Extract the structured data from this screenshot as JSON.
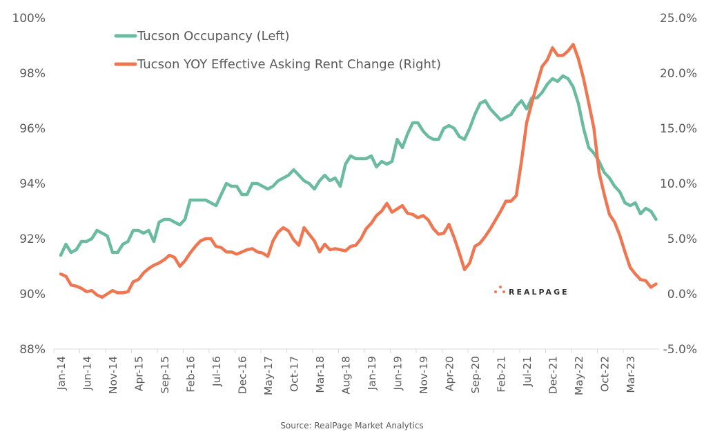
{
  "chart_data": {
    "type": "line",
    "title": "",
    "xlabel": "",
    "ylabel_left": "",
    "ylabel_right": "",
    "legend_position": "top-left",
    "grid": false,
    "x_tick_labels": [
      "Jan-14",
      "Jun-14",
      "Nov-14",
      "Apr-15",
      "Sep-15",
      "Feb-16",
      "Jul-16",
      "Dec-16",
      "May-17",
      "Oct-17",
      "Mar-18",
      "Aug-18",
      "Jan-19",
      "Jun-19",
      "Nov-19",
      "Apr-20",
      "Sep-20",
      "Feb-21",
      "Jul-21",
      "Dec-21",
      "May-22",
      "Oct-22",
      "Mar-23"
    ],
    "x_start": "Jan-14",
    "x_end": "Jul-23",
    "left_axis": {
      "ylim": [
        88,
        100
      ],
      "ticks": [
        88,
        90,
        92,
        94,
        96,
        98,
        100
      ],
      "tick_labels": [
        "88%",
        "90%",
        "92%",
        "94%",
        "96%",
        "98%",
        "100%"
      ]
    },
    "right_axis": {
      "ylim": [
        -5,
        25
      ],
      "ticks": [
        -5,
        0,
        5,
        10,
        15,
        20,
        25
      ],
      "tick_labels": [
        "-5.0%",
        "0.0%",
        "5.0%",
        "10.0%",
        "15.0%",
        "20.0%",
        "25.0%"
      ]
    },
    "series": [
      {
        "name": "Tucson Occupancy (Left)",
        "axis": "left",
        "color": "#6BBBA1",
        "values": [
          91.4,
          91.8,
          91.5,
          91.6,
          91.9,
          91.9,
          92.0,
          92.3,
          92.2,
          92.1,
          91.5,
          91.5,
          91.8,
          91.9,
          92.3,
          92.3,
          92.2,
          92.3,
          91.9,
          92.6,
          92.7,
          92.7,
          92.6,
          92.5,
          92.7,
          93.4,
          93.4,
          93.4,
          93.4,
          93.3,
          93.2,
          93.6,
          94.0,
          93.9,
          93.9,
          93.6,
          93.6,
          94.0,
          94.0,
          93.9,
          93.8,
          93.9,
          94.1,
          94.2,
          94.3,
          94.5,
          94.3,
          94.1,
          94.0,
          93.8,
          94.1,
          94.3,
          94.1,
          94.2,
          93.9,
          94.7,
          95.0,
          94.9,
          94.9,
          94.9,
          95.0,
          94.6,
          94.8,
          94.7,
          94.8,
          95.6,
          95.3,
          95.8,
          96.2,
          96.2,
          95.9,
          95.7,
          95.6,
          95.6,
          96.0,
          96.1,
          96.0,
          95.7,
          95.6,
          96.0,
          96.5,
          96.9,
          97.0,
          96.7,
          96.5,
          96.3,
          96.4,
          96.5,
          96.8,
          97.0,
          96.7,
          97.1,
          97.1,
          97.3,
          97.6,
          97.8,
          97.7,
          97.9,
          97.8,
          97.5,
          96.9,
          96.0,
          95.3,
          95.1,
          94.8,
          94.4,
          94.2,
          93.9,
          93.7,
          93.3,
          93.2,
          93.3,
          92.9,
          93.1,
          93.0,
          92.7
        ]
      },
      {
        "name": "Tucson YOY Effective Asking Rent Change (Right)",
        "axis": "right",
        "color": "#EE7752",
        "values": [
          1.8,
          1.6,
          0.8,
          0.7,
          0.5,
          0.2,
          0.3,
          -0.1,
          -0.3,
          0.0,
          0.3,
          0.1,
          0.1,
          0.2,
          1.1,
          1.3,
          1.9,
          2.3,
          2.6,
          2.8,
          3.1,
          3.5,
          3.3,
          2.5,
          3.0,
          3.7,
          4.3,
          4.8,
          5.0,
          5.0,
          4.3,
          4.2,
          3.8,
          3.8,
          3.6,
          3.8,
          4.0,
          4.1,
          3.8,
          3.7,
          3.4,
          4.8,
          5.6,
          6.0,
          5.7,
          4.9,
          4.4,
          6.0,
          5.4,
          4.8,
          3.8,
          4.5,
          4.0,
          4.1,
          4.0,
          3.9,
          4.3,
          4.4,
          5.0,
          5.9,
          6.4,
          7.1,
          7.5,
          8.2,
          7.4,
          7.7,
          8.0,
          7.3,
          7.2,
          6.9,
          7.1,
          6.7,
          5.9,
          5.4,
          5.5,
          6.3,
          5.1,
          3.7,
          2.2,
          2.8,
          4.3,
          4.6,
          5.2,
          5.9,
          6.7,
          7.5,
          8.4,
          8.4,
          8.9,
          12.0,
          15.5,
          17.3,
          19.0,
          20.6,
          21.2,
          22.3,
          21.6,
          21.6,
          22.0,
          22.6,
          21.3,
          19.5,
          17.3,
          15.0,
          11.0,
          9.0,
          7.2,
          6.5,
          5.3,
          3.8,
          2.4,
          1.8,
          1.3,
          1.2,
          0.6,
          0.9
        ]
      }
    ],
    "annotations": [
      "Source: RealPage Market Analytics"
    ]
  },
  "legend": {
    "occupancy_label": "Tucson Occupancy (Left)",
    "rent_label": "Tucson YOY Effective Asking Rent Change (Right)"
  },
  "source": "Source: RealPage Market Analytics",
  "logo": {
    "text": "REALPAGE",
    "color": "#EE7752"
  }
}
